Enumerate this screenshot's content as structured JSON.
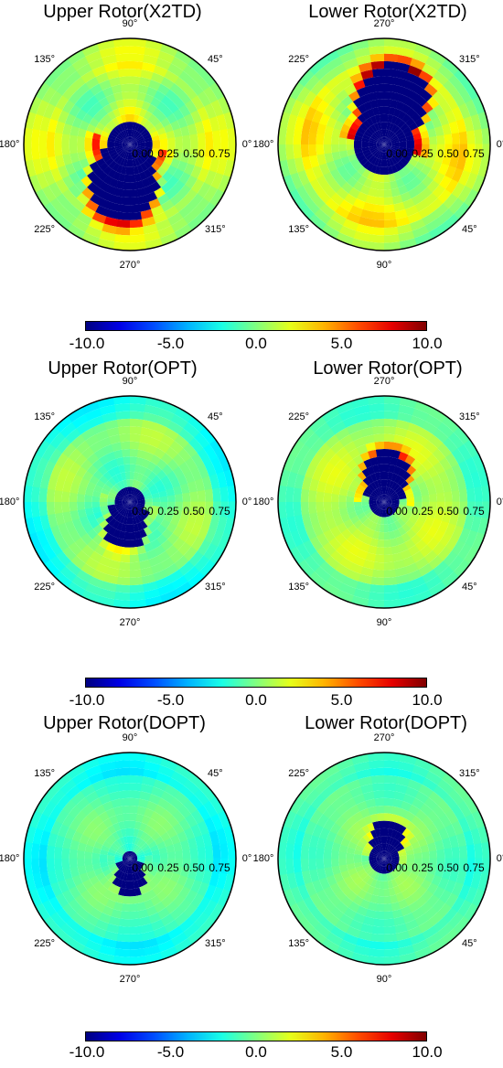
{
  "chart_data": [
    {
      "type": "heatmap",
      "title": "Upper Rotor(X2TD)",
      "angle_labels": [
        "0°",
        "45°",
        "90°",
        "135°",
        "180°",
        "225°",
        "270°",
        "315°"
      ],
      "angle_direction": "counterclockwise",
      "radial_ticks": [
        "0.00",
        "0.25",
        "0.50",
        "0.75"
      ],
      "colorbar_range": [
        -10,
        10
      ]
    },
    {
      "type": "heatmap",
      "title": "Lower Rotor(X2TD)",
      "angle_labels": [
        "0°",
        "315°",
        "270°",
        "225°",
        "180°",
        "135°",
        "90°",
        "45°"
      ],
      "angle_direction": "clockwise",
      "radial_ticks": [
        "0.00",
        "0.25",
        "0.50",
        "0.75"
      ],
      "colorbar_range": [
        -10,
        10
      ]
    },
    {
      "type": "heatmap",
      "title": "Upper Rotor(OPT)",
      "angle_labels": [
        "0°",
        "45°",
        "90°",
        "135°",
        "180°",
        "225°",
        "270°",
        "315°"
      ],
      "angle_direction": "counterclockwise",
      "radial_ticks": [
        "0.00",
        "0.25",
        "0.50",
        "0.75"
      ],
      "colorbar_range": [
        -10,
        10
      ]
    },
    {
      "type": "heatmap",
      "title": "Lower Rotor(OPT)",
      "angle_labels": [
        "0°",
        "315°",
        "270°",
        "225°",
        "180°",
        "135°",
        "90°",
        "45°"
      ],
      "angle_direction": "clockwise",
      "radial_ticks": [
        "0.00",
        "0.25",
        "0.50",
        "0.75"
      ],
      "colorbar_range": [
        -10,
        10
      ]
    },
    {
      "type": "heatmap",
      "title": "Upper Rotor(DOPT)",
      "angle_labels": [
        "0°",
        "45°",
        "90°",
        "135°",
        "180°",
        "225°",
        "270°",
        "315°"
      ],
      "angle_direction": "counterclockwise",
      "radial_ticks": [
        "0.00",
        "0.25",
        "0.50",
        "0.75"
      ],
      "colorbar_range": [
        -10,
        10
      ]
    },
    {
      "type": "heatmap",
      "title": "Lower Rotor(DOPT)",
      "angle_labels": [
        "0°",
        "315°",
        "270°",
        "225°",
        "180°",
        "135°",
        "90°",
        "45°"
      ],
      "angle_direction": "clockwise",
      "radial_ticks": [
        "0.00",
        "0.25",
        "0.50",
        "0.75"
      ],
      "colorbar_range": [
        -10,
        10
      ]
    }
  ],
  "colorbars": [
    {
      "ticks": [
        "-10.0",
        "-5.0",
        "0.0",
        "5.0",
        "10.0"
      ],
      "range": [
        -10,
        10
      ],
      "colormap": "jet"
    },
    {
      "ticks": [
        "-10.0",
        "-5.0",
        "0.0",
        "5.0",
        "10.0"
      ],
      "range": [
        -10,
        10
      ],
      "colormap": "jet"
    },
    {
      "ticks": [
        "-10.0",
        "-5.0",
        "0.0",
        "5.0",
        "10.0"
      ],
      "range": [
        -10,
        10
      ],
      "colormap": "jet"
    }
  ]
}
